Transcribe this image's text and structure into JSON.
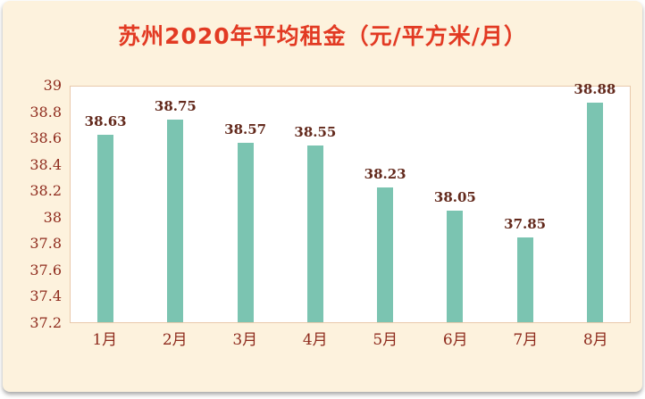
{
  "chart_data": {
    "type": "bar",
    "title": "苏州2020年平均租金（元/平方米/月）",
    "categories": [
      "1月",
      "2月",
      "3月",
      "4月",
      "5月",
      "6月",
      "7月",
      "8月"
    ],
    "values": [
      38.63,
      38.75,
      38.57,
      38.55,
      38.23,
      38.05,
      37.85,
      38.88
    ],
    "data_labels": [
      "38.63",
      "38.75",
      "38.57",
      "38.55",
      "38.23",
      "38.05",
      "37.85",
      "38.88"
    ],
    "xlabel": "",
    "ylabel": "",
    "ylim": [
      37.2,
      39
    ],
    "yticks": [
      37.2,
      37.4,
      37.6,
      37.8,
      38,
      38.2,
      38.4,
      38.6,
      38.8,
      39
    ],
    "ytick_labels": [
      "37.2",
      "37.4",
      "37.6",
      "37.8",
      "38",
      "38.2",
      "38.4",
      "38.6",
      "38.8",
      "39"
    ],
    "grid": false,
    "legend": false,
    "colors": {
      "background": "#fdf2dd",
      "plot_background": "#ffffff",
      "plot_border": "#e9c9ab",
      "bar": "#7bc4b1",
      "title": "#e23a23",
      "tick_label": "#8e2a1c",
      "data_label": "#63291c"
    }
  }
}
